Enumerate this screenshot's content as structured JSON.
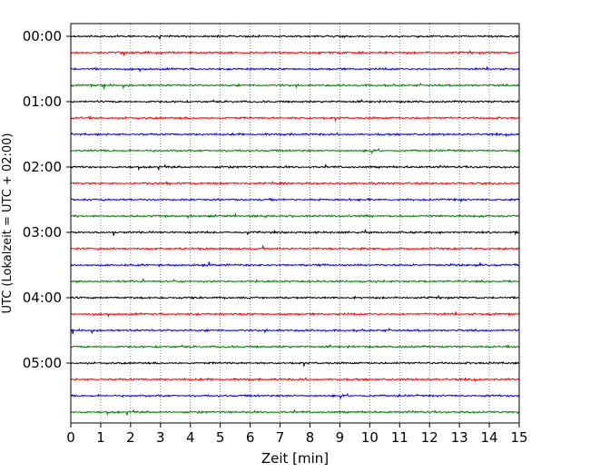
{
  "chart_data": {
    "type": "line",
    "title": "",
    "xlabel": "Zeit  [min]",
    "ylabel": "UTC (Lokalzeit = UTC + 02:00)",
    "xlim": [
      0,
      15
    ],
    "x_ticks": [
      "0",
      "1",
      "2",
      "3",
      "4",
      "5",
      "6",
      "7",
      "8",
      "9",
      "10",
      "11",
      "12",
      "13",
      "14",
      "15"
    ],
    "y_tick_labels": [
      "00:00",
      "01:00",
      "02:00",
      "03:00",
      "04:00",
      "05:00"
    ],
    "trace_interval_min": 15,
    "trace_count": 24,
    "trace_colors": [
      "#000000",
      "#ff0000",
      "#0000ff",
      "#008000"
    ],
    "grid": "vertical dotted",
    "series": [
      {
        "start": "00:00",
        "color": "#000000"
      },
      {
        "start": "00:15",
        "color": "#ff0000"
      },
      {
        "start": "00:30",
        "color": "#0000ff"
      },
      {
        "start": "00:45",
        "color": "#008000"
      },
      {
        "start": "01:00",
        "color": "#000000"
      },
      {
        "start": "01:15",
        "color": "#ff0000"
      },
      {
        "start": "01:30",
        "color": "#0000ff"
      },
      {
        "start": "01:45",
        "color": "#008000"
      },
      {
        "start": "02:00",
        "color": "#000000"
      },
      {
        "start": "02:15",
        "color": "#ff0000"
      },
      {
        "start": "02:30",
        "color": "#0000ff"
      },
      {
        "start": "02:45",
        "color": "#008000"
      },
      {
        "start": "03:00",
        "color": "#000000"
      },
      {
        "start": "03:15",
        "color": "#ff0000"
      },
      {
        "start": "03:30",
        "color": "#0000ff"
      },
      {
        "start": "03:45",
        "color": "#008000"
      },
      {
        "start": "04:00",
        "color": "#000000"
      },
      {
        "start": "04:15",
        "color": "#ff0000"
      },
      {
        "start": "04:30",
        "color": "#0000ff"
      },
      {
        "start": "04:45",
        "color": "#008000"
      },
      {
        "start": "05:00",
        "color": "#000000"
      },
      {
        "start": "05:15",
        "color": "#ff0000"
      },
      {
        "start": "05:30",
        "color": "#0000ff"
      },
      {
        "start": "05:45",
        "color": "#008000"
      }
    ]
  }
}
